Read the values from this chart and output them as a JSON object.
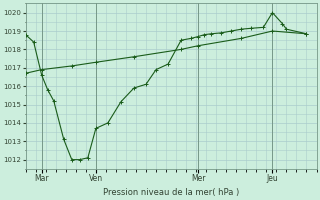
{
  "xlabel": "Pression niveau de la mer( hPa )",
  "bg_color": "#cceedd",
  "grid_color": "#aacccc",
  "line_color": "#1a5c1a",
  "ylim": [
    1011.5,
    1020.5
  ],
  "yticks": [
    1012,
    1013,
    1014,
    1015,
    1016,
    1017,
    1018,
    1019,
    1020
  ],
  "xtick_labels": [
    "Mar",
    "Ven",
    "Mer",
    "Jeu"
  ],
  "xtick_positions": [
    16,
    70,
    172,
    246
  ],
  "line1_x": [
    0,
    8,
    16,
    22,
    28,
    38,
    46,
    54,
    62,
    70,
    82,
    95,
    108,
    120,
    130,
    142,
    155,
    165,
    172,
    178,
    185,
    195,
    205,
    215,
    225,
    237,
    246,
    256,
    260,
    280
  ],
  "line1_y": [
    1018.8,
    1018.4,
    1016.6,
    1015.8,
    1015.2,
    1013.1,
    1012.0,
    1012.0,
    1012.1,
    1013.7,
    1014.0,
    1015.15,
    1015.9,
    1016.1,
    1016.9,
    1017.2,
    1018.5,
    1018.6,
    1018.7,
    1018.8,
    1018.85,
    1018.9,
    1019.0,
    1019.1,
    1019.15,
    1019.2,
    1020.0,
    1019.4,
    1019.1,
    1018.85
  ],
  "line2_x": [
    0,
    16,
    46,
    70,
    108,
    155,
    172,
    215,
    246,
    280
  ],
  "line2_y": [
    1016.7,
    1016.9,
    1017.1,
    1017.3,
    1017.6,
    1018.0,
    1018.2,
    1018.6,
    1019.0,
    1018.85
  ],
  "vline_positions": [
    16,
    70,
    172,
    246
  ],
  "xlim": [
    0,
    290
  ],
  "figsize": [
    3.2,
    2.0
  ],
  "dpi": 100
}
